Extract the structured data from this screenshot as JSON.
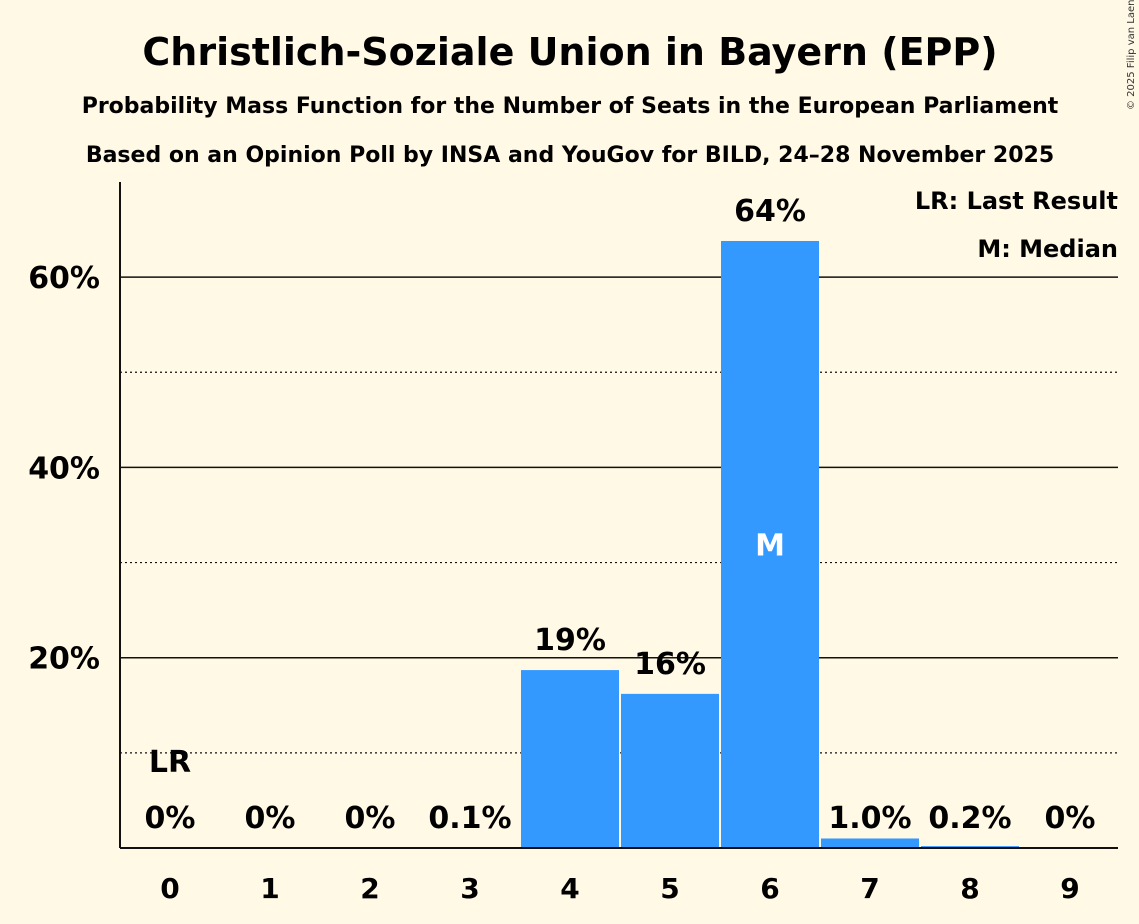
{
  "chart_data": {
    "type": "bar",
    "title": "Christlich-Soziale Union in Bayern (EPP)",
    "subtitle": "Probability Mass Function for the Number of Seats in the European Parliament",
    "source": "Based on an Opinion Poll by INSA and YouGov for BILD, 24–28 November 2025",
    "copyright": "© 2025 Filip van Laenen",
    "xlabel": "",
    "ylabel": "",
    "categories": [
      "0",
      "1",
      "2",
      "3",
      "4",
      "5",
      "6",
      "7",
      "8",
      "9"
    ],
    "values": [
      0,
      0,
      0,
      0.1,
      18.7,
      16.2,
      63.8,
      1.0,
      0.2,
      0
    ],
    "value_labels": [
      "0%",
      "0%",
      "0%",
      "0.1%",
      "19%",
      "16%",
      "64%",
      "1.0%",
      "0.2%",
      "0%"
    ],
    "ylim": [
      0,
      70
    ],
    "yticks": [
      {
        "value": 20,
        "label": "20%"
      },
      {
        "value": 40,
        "label": "40%"
      },
      {
        "value": 60,
        "label": "60%"
      }
    ],
    "minor_grid": [
      10,
      30,
      50
    ],
    "last_result_index": 0,
    "last_result_label": "LR",
    "median_index": 6,
    "median_label": "M",
    "legend": [
      "LR: Last Result",
      "M: Median"
    ],
    "bar_color": "#3399FF"
  }
}
